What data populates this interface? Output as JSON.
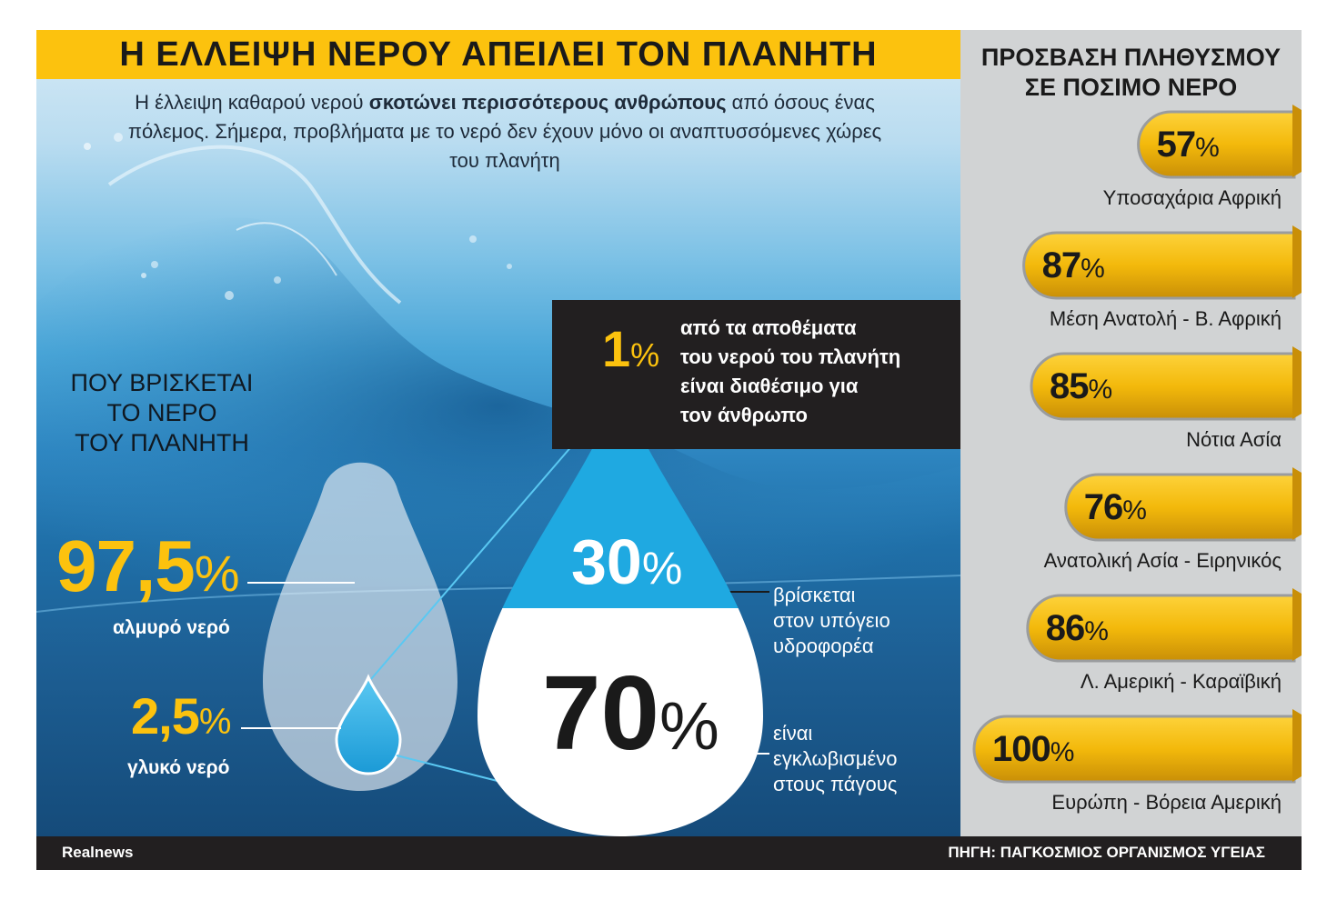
{
  "title": "Η ΕΛΛΕΙΨΗ ΝΕΡΟΥ ΑΠΕΙΛΕΙ ΤΟΝ ΠΛΑΝΗΤΗ",
  "intro": {
    "part1": "Η έλλειψη καθαρού νερού ",
    "bold": "σκοτώνει περισσότερους ανθρώπους",
    "part2": " από όσους ένας πόλεμος. Σήμερα, προβλήματα με το νερό δεν έχουν μόνο οι αναπτυσσόμενες χώρες του πλανήτη"
  },
  "where": {
    "heading_line1": "ΠΟΥ ΒΡΙΣΚΕΤΑΙ",
    "heading_line2": "ΤΟ ΝΕΡΟ",
    "heading_line3": "ΤΟΥ ΠΛΑΝΗΤΗ",
    "salt": {
      "value": "97,5",
      "unit": "%",
      "label": "αλμυρό νερό"
    },
    "fresh": {
      "value": "2,5",
      "unit": "%",
      "label": "γλυκό νερό"
    }
  },
  "available": {
    "value": "1",
    "unit": "%",
    "line1": "από τα αποθέματα",
    "line2": "του νερού του πλανήτη",
    "line3": "είναι διαθέσιμο για",
    "line4": "τον άνθρωπο"
  },
  "groundwater": {
    "value": "30",
    "unit": "%",
    "line1": "βρίσκεται",
    "line2": "στον υπόγειο",
    "line3": "υδροφορέα"
  },
  "ice": {
    "value": "70",
    "unit": "%",
    "line1": "είναι",
    "line2": "εγκλωβισμένο",
    "line3": "στους πάγους"
  },
  "access": {
    "heading_line1": "ΠΡΟΣΒΑΣΗ ΠΛΗΘΥΣΜΟΥ",
    "heading_line2": "ΣΕ ΠΟΣΙΜΟ ΝΕΡΟ",
    "items": [
      {
        "value": "57",
        "unit": "%",
        "region": "Υποσαχάρια Αφρική"
      },
      {
        "value": "87",
        "unit": "%",
        "region": "Μέση Ανατολή - Β. Αφρική"
      },
      {
        "value": "85",
        "unit": "%",
        "region": "Νότια Ασία"
      },
      {
        "value": "76",
        "unit": "%",
        "region": "Ανατολική Ασία - Ειρηνικός"
      },
      {
        "value": "86",
        "unit": "%",
        "region": "Λ. Αμερική - Καραϊβική"
      },
      {
        "value": "100",
        "unit": "%",
        "region": "Ευρώπη - Βόρεια Αμερική"
      }
    ]
  },
  "footer": {
    "brand": "Realnews",
    "source": "ΠΗΓΗ: ΠΑΓΚΟΣΜΙΟΣ ΟΡΓΑΝΙΣΜΟΣ ΥΓΕΙΑΣ"
  },
  "colors": {
    "accent": "#fcc20e",
    "dark": "#221f20",
    "drop_blue": "#1fa9e1",
    "panel_grey": "#d1d3d4"
  }
}
